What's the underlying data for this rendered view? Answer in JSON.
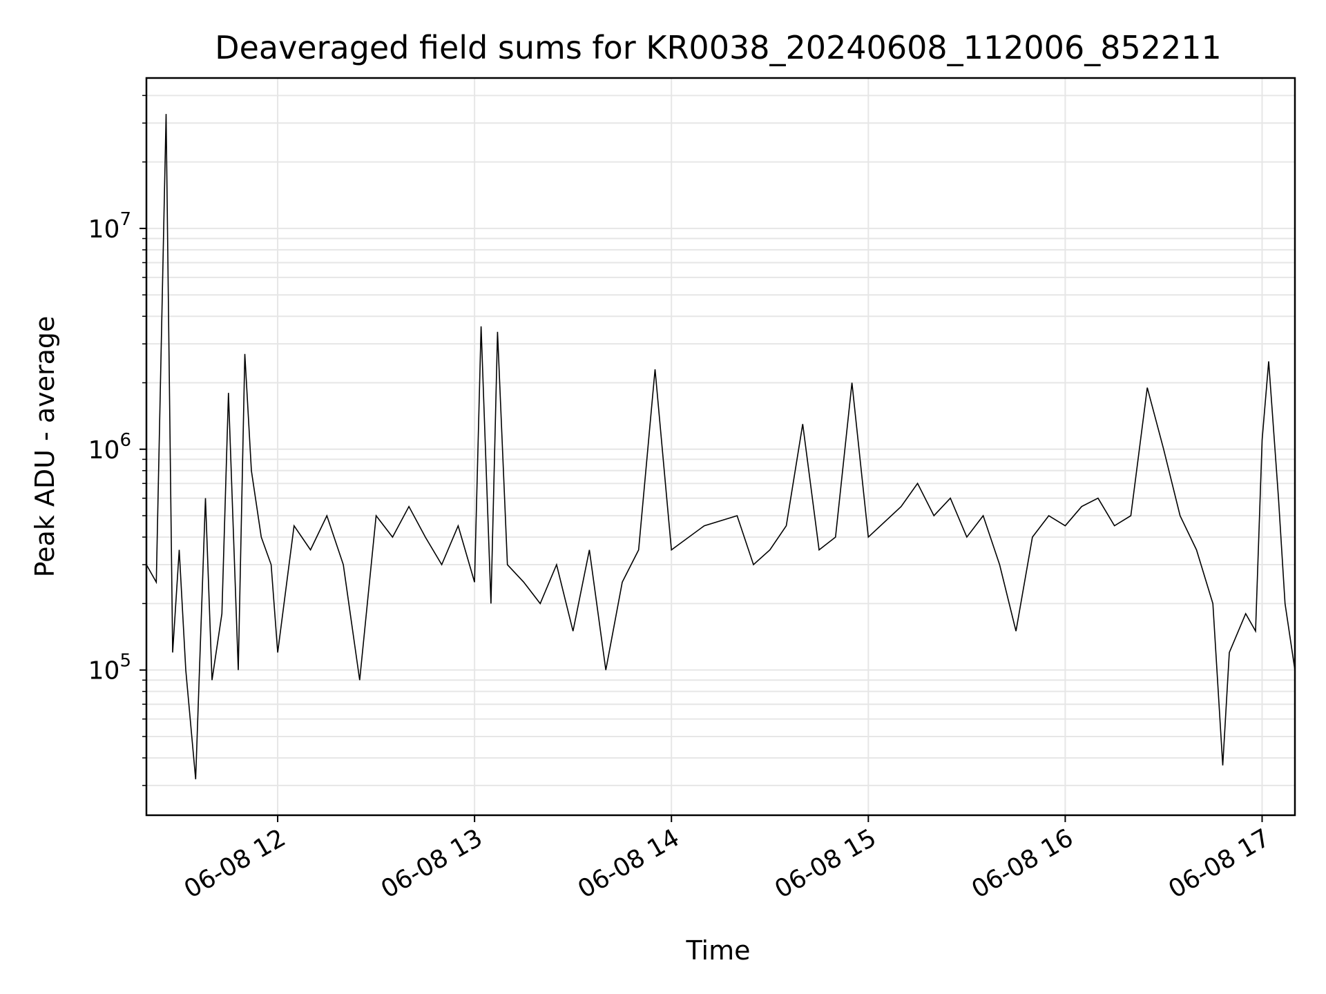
{
  "chart_data": {
    "type": "line",
    "title": "Deaveraged field sums for KR0038_20240608_112006_852211",
    "xlabel": "Time",
    "ylabel": "Peak ADU - average",
    "yscale": "log",
    "grid": true,
    "line_color": "#000000",
    "grid_color": "#e6e6e6",
    "xlim": [
      "2024-06-08 11:20",
      "2024-06-08 17:10"
    ],
    "ylim": [
      22000,
      48000000
    ],
    "x_ticks": [
      {
        "value": "2024-06-08 12:00",
        "label": "06-08 12"
      },
      {
        "value": "2024-06-08 13:00",
        "label": "06-08 13"
      },
      {
        "value": "2024-06-08 14:00",
        "label": "06-08 14"
      },
      {
        "value": "2024-06-08 15:00",
        "label": "06-08 15"
      },
      {
        "value": "2024-06-08 16:00",
        "label": "06-08 16"
      },
      {
        "value": "2024-06-08 17:00",
        "label": "06-08 17"
      }
    ],
    "y_ticks": [
      {
        "value": 100000,
        "base": "10",
        "exp": "5"
      },
      {
        "value": 1000000,
        "base": "10",
        "exp": "6"
      },
      {
        "value": 10000000,
        "base": "10",
        "exp": "7"
      }
    ],
    "series": [
      {
        "x": [
          "2024-06-08 11:20",
          "2024-06-08 11:23",
          "2024-06-08 11:26",
          "2024-06-08 11:28",
          "2024-06-08 11:30",
          "2024-06-08 11:32",
          "2024-06-08 11:35",
          "2024-06-08 11:38",
          "2024-06-08 11:40",
          "2024-06-08 11:43",
          "2024-06-08 11:45",
          "2024-06-08 11:48",
          "2024-06-08 11:50",
          "2024-06-08 11:52",
          "2024-06-08 11:55",
          "2024-06-08 11:58",
          "2024-06-08 12:00",
          "2024-06-08 12:05",
          "2024-06-08 12:10",
          "2024-06-08 12:15",
          "2024-06-08 12:20",
          "2024-06-08 12:25",
          "2024-06-08 12:30",
          "2024-06-08 12:35",
          "2024-06-08 12:40",
          "2024-06-08 12:45",
          "2024-06-08 12:50",
          "2024-06-08 12:55",
          "2024-06-08 13:00",
          "2024-06-08 13:02",
          "2024-06-08 13:05",
          "2024-06-08 13:07",
          "2024-06-08 13:10",
          "2024-06-08 13:15",
          "2024-06-08 13:20",
          "2024-06-08 13:25",
          "2024-06-08 13:30",
          "2024-06-08 13:35",
          "2024-06-08 13:40",
          "2024-06-08 13:45",
          "2024-06-08 13:50",
          "2024-06-08 13:55",
          "2024-06-08 14:00",
          "2024-06-08 14:10",
          "2024-06-08 14:20",
          "2024-06-08 14:25",
          "2024-06-08 14:30",
          "2024-06-08 14:35",
          "2024-06-08 14:40",
          "2024-06-08 14:45",
          "2024-06-08 14:50",
          "2024-06-08 14:55",
          "2024-06-08 15:00",
          "2024-06-08 15:10",
          "2024-06-08 15:15",
          "2024-06-08 15:20",
          "2024-06-08 15:25",
          "2024-06-08 15:30",
          "2024-06-08 15:35",
          "2024-06-08 15:40",
          "2024-06-08 15:45",
          "2024-06-08 15:50",
          "2024-06-08 15:55",
          "2024-06-08 16:00",
          "2024-06-08 16:05",
          "2024-06-08 16:10",
          "2024-06-08 16:15",
          "2024-06-08 16:20",
          "2024-06-08 16:25",
          "2024-06-08 16:30",
          "2024-06-08 16:35",
          "2024-06-08 16:40",
          "2024-06-08 16:45",
          "2024-06-08 16:48",
          "2024-06-08 16:50",
          "2024-06-08 16:55",
          "2024-06-08 16:58",
          "2024-06-08 17:00",
          "2024-06-08 17:02",
          "2024-06-08 17:05",
          "2024-06-08 17:07",
          "2024-06-08 17:10"
        ],
        "y": [
          300000,
          250000,
          33000000,
          120000,
          350000,
          100000,
          32000,
          600000,
          90000,
          180000,
          1800000,
          100000,
          2700000,
          800000,
          400000,
          300000,
          120000,
          450000,
          350000,
          500000,
          300000,
          90000,
          500000,
          400000,
          550000,
          400000,
          300000,
          450000,
          250000,
          3600000,
          200000,
          3400000,
          300000,
          250000,
          200000,
          300000,
          150000,
          350000,
          100000,
          250000,
          350000,
          2300000,
          350000,
          450000,
          500000,
          300000,
          350000,
          450000,
          1300000,
          350000,
          400000,
          2000000,
          400000,
          550000,
          700000,
          500000,
          600000,
          400000,
          500000,
          300000,
          150000,
          400000,
          500000,
          450000,
          550000,
          600000,
          450000,
          500000,
          1900000,
          1000000,
          500000,
          350000,
          200000,
          37000,
          120000,
          180000,
          150000,
          1100000,
          2500000,
          600000,
          200000,
          100000
        ]
      }
    ]
  }
}
